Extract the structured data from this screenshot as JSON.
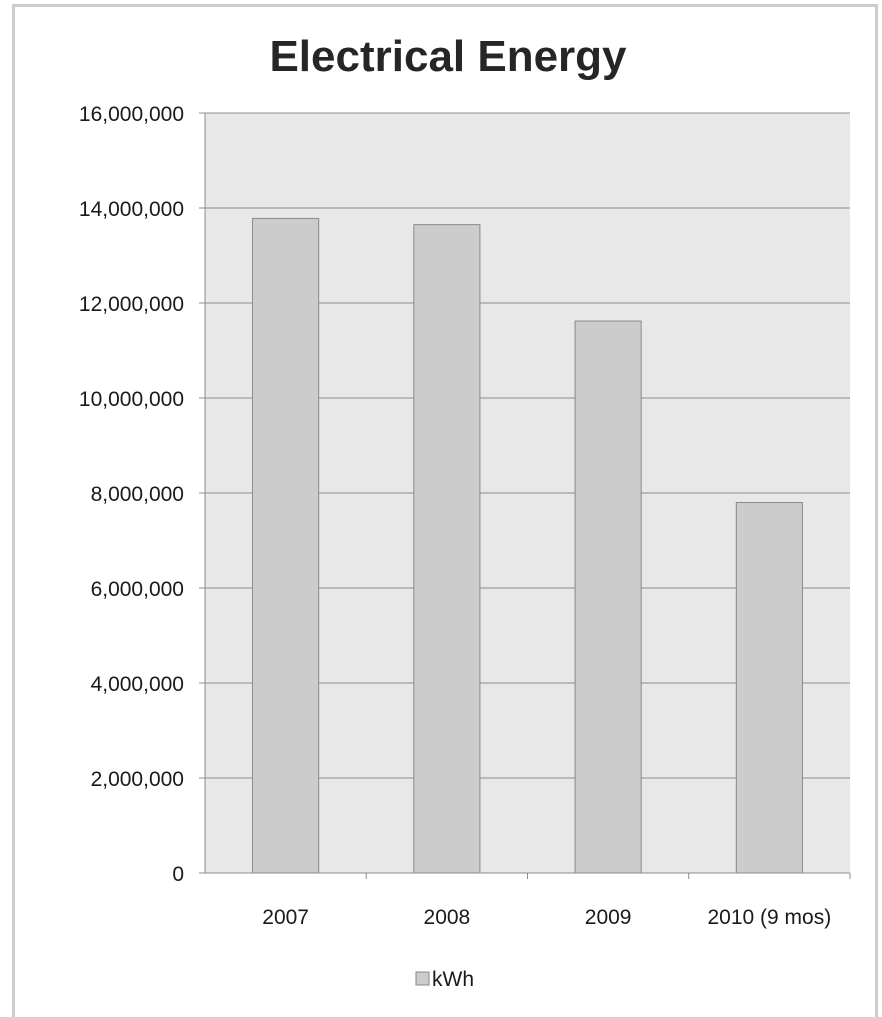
{
  "chart_data": {
    "type": "bar",
    "title": "Electrical Energy",
    "categories": [
      "2007",
      "2008",
      "2009",
      "2010 (9 mos)"
    ],
    "series": [
      {
        "name": "kWh",
        "values": [
          13780000,
          13650000,
          11620000,
          7800000
        ],
        "color": "#cccccc"
      }
    ],
    "ylim": [
      0,
      16000000
    ],
    "y_ticks": [
      0,
      2000000,
      4000000,
      6000000,
      8000000,
      10000000,
      12000000,
      14000000,
      16000000
    ],
    "y_tick_labels": [
      "0",
      "2,000,000",
      "4,000,000",
      "6,000,000",
      "8,000,000",
      "10,000,000",
      "12,000,000",
      "14,000,000",
      "16,000,000"
    ],
    "xlabel": "",
    "ylabel": "",
    "grid": true,
    "legend_position": "bottom",
    "colors": {
      "plot_background": "#e8e8e8",
      "gridline": "#8c8c8c",
      "bar_fill": "#cccccc",
      "bar_stroke": "#8a8a8a"
    }
  }
}
